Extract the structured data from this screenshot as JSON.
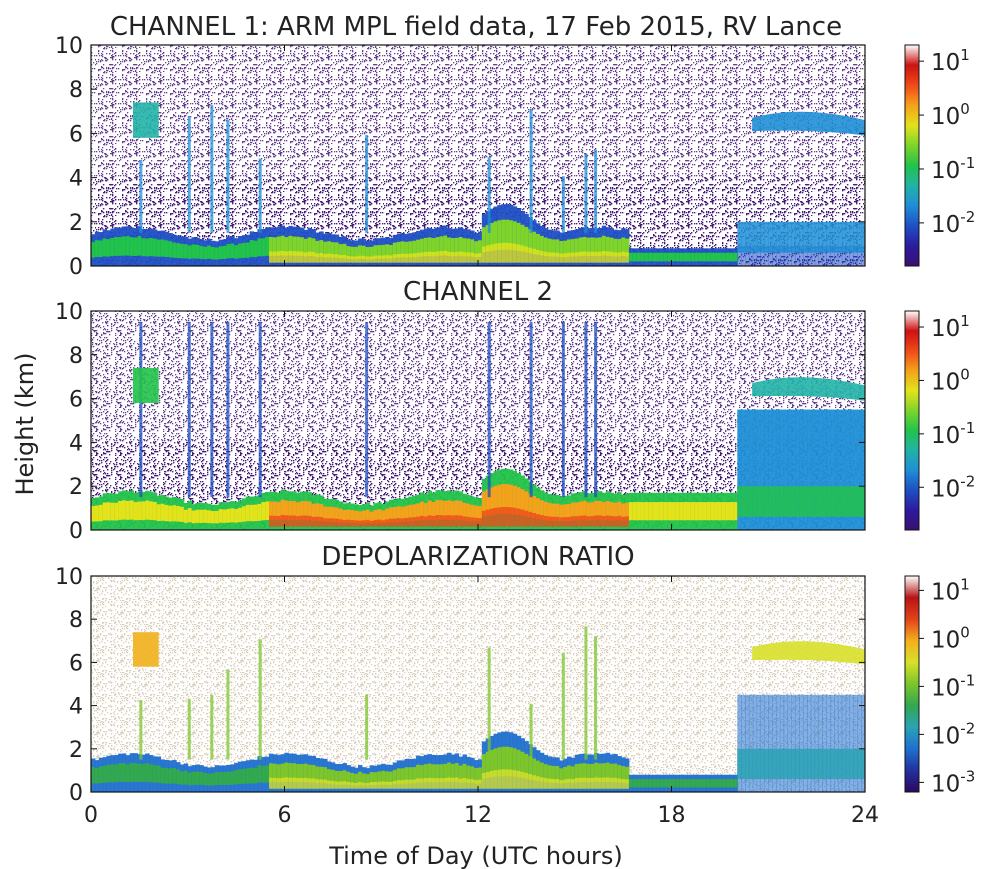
{
  "chart_data": [
    {
      "type": "heatmap",
      "title": "CHANNEL 1: ARM MPL field data, 17 Feb 2015, RV Lance",
      "x": {
        "range": [
          0,
          24
        ],
        "ticks": [
          0,
          6,
          12,
          18,
          24
        ]
      },
      "y": {
        "range": [
          0,
          10
        ],
        "ticks": [
          0,
          2,
          4,
          6,
          8,
          10
        ]
      },
      "colorbar": {
        "scale": "log",
        "tick_labels": [
          "10^1",
          "10^0",
          "10^-1",
          "10^-2"
        ],
        "tick_exponents": [
          1,
          0,
          -1,
          -2
        ],
        "range_exponent": [
          -2.8,
          1.3
        ]
      },
      "colormap": [
        "#3b0f70",
        "#2c1b9e",
        "#1f4fc4",
        "#1f8fd6",
        "#21b3a6",
        "#22c34a",
        "#7fd42a",
        "#e3e21b",
        "#f4a21b",
        "#ef4a1b",
        "#cc1212",
        "#ffffff"
      ],
      "noise_color": "#3a0d6e"
    },
    {
      "type": "heatmap",
      "title": "CHANNEL 2",
      "x": {
        "range": [
          0,
          24
        ],
        "ticks": [
          0,
          6,
          12,
          18,
          24
        ]
      },
      "y": {
        "range": [
          0,
          10
        ],
        "ticks": [
          0,
          2,
          4,
          6,
          8,
          10
        ]
      },
      "colorbar": {
        "scale": "log",
        "tick_labels": [
          "10^1",
          "10^0",
          "10^-1",
          "10^-2"
        ],
        "tick_exponents": [
          1,
          0,
          -1,
          -2
        ],
        "range_exponent": [
          -2.8,
          1.3
        ]
      },
      "colormap": [
        "#3b0f70",
        "#2c1b9e",
        "#1f4fc4",
        "#1f8fd6",
        "#21b3a6",
        "#22c34a",
        "#7fd42a",
        "#e3e21b",
        "#f4a21b",
        "#ef4a1b",
        "#cc1212",
        "#ffffff"
      ],
      "noise_color": "#3a0d6e"
    },
    {
      "type": "heatmap",
      "title": "DEPOLARIZATION RATIO",
      "x": {
        "range": [
          0,
          24
        ],
        "ticks": [
          0,
          6,
          12,
          18,
          24
        ]
      },
      "y": {
        "range": [
          0,
          10
        ],
        "ticks": [
          0,
          2,
          4,
          6,
          8,
          10
        ]
      },
      "colorbar": {
        "scale": "log",
        "tick_labels": [
          "10^1",
          "10^0",
          "10^-1",
          "10^-2",
          "10^-3"
        ],
        "tick_exponents": [
          1,
          0,
          -1,
          -2,
          -3
        ],
        "range_exponent": [
          -3.2,
          1.3
        ]
      },
      "colormap": [
        "#2a0a5e",
        "#23309e",
        "#1f6fcf",
        "#2aa3b5",
        "#32a84f",
        "#7cc52a",
        "#d8e02a",
        "#f2b01c",
        "#e2421a",
        "#b71414",
        "#ffffff"
      ],
      "noise_color": "#b59a6e"
    }
  ],
  "xlabel": "Time of Day (UTC hours)",
  "ylabel": "Height (km)"
}
